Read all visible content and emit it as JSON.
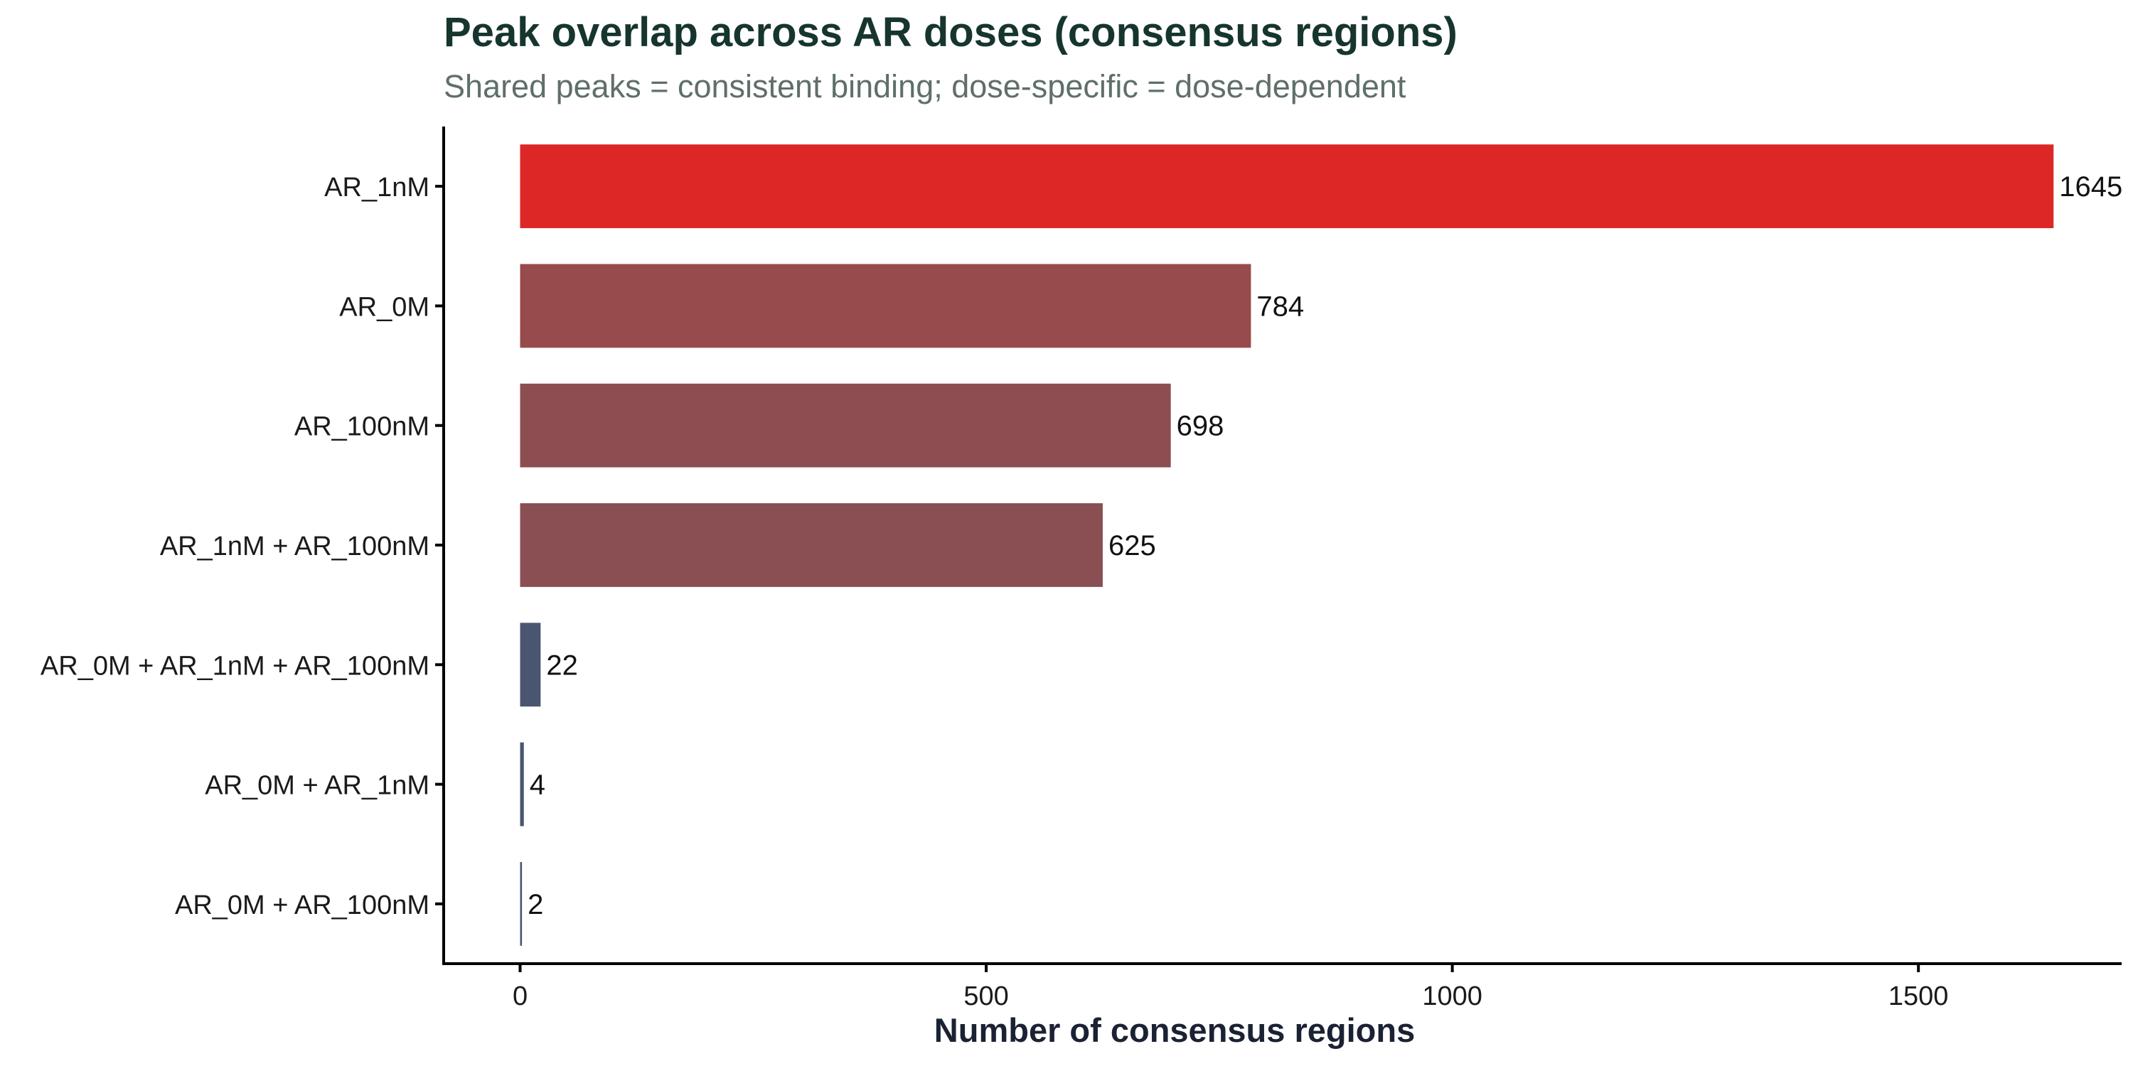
{
  "chart_data": {
    "type": "bar",
    "orientation": "horizontal",
    "title": "Peak overlap across AR doses (consensus regions)",
    "subtitle": "Shared peaks = consistent binding; dose-specific = dose-dependent",
    "xlabel": "Number of consensus regions",
    "ylabel": "",
    "xlim": [
      -82,
      1718
    ],
    "xticks": [
      0,
      500,
      1000,
      1500
    ],
    "grid": false,
    "legend": "none",
    "categories": [
      "AR_1nM",
      "AR_0M",
      "AR_100nM",
      "AR_1nM + AR_100nM",
      "AR_0M + AR_1nM + AR_100nM",
      "AR_0M + AR_1nM",
      "AR_0M + AR_100nM"
    ],
    "values": [
      1645,
      784,
      698,
      625,
      22,
      4,
      2
    ],
    "bar_colors": [
      "#dd2727",
      "#974b4c",
      "#8c4e51",
      "#894f53",
      "#4a5570",
      "#4a5570",
      "#4a5570"
    ]
  }
}
